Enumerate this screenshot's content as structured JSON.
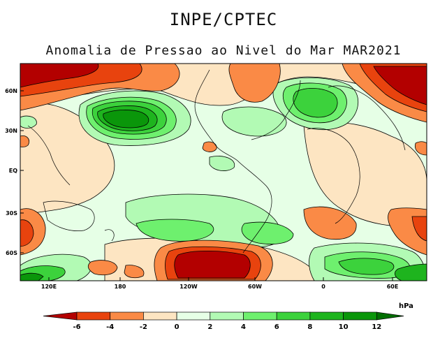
{
  "header": {
    "organization": "INPE/CPTEC",
    "title": "Anomalia de Pressao ao Nivel do Mar MAR2021"
  },
  "map": {
    "variable": "Sea level pressure anomaly",
    "period": "MAR2021",
    "lat_labels": [
      "60N",
      "30N",
      "EQ",
      "30S",
      "60S"
    ],
    "lon_labels": [
      "120E",
      "180",
      "120W",
      "60W",
      "0",
      "60E"
    ]
  },
  "colorbar": {
    "unit": "hPa",
    "ticks": [
      "-6",
      "-4",
      "-2",
      "0",
      "2",
      "4",
      "6",
      "8",
      "10",
      "12"
    ],
    "colors": {
      "lt_-6": "#b30000",
      "-6_-4": "#e8430e",
      "-4_-2": "#fa8a46",
      "-2_0": "#fde5c2",
      "0_2": "#e6ffe6",
      "2_4": "#b2fab4",
      "4_6": "#6ef06e",
      "6_8": "#3cd23c",
      "8_10": "#1eb41e",
      "10_12": "#0a960a",
      "gt_12": "#006e00"
    }
  }
}
